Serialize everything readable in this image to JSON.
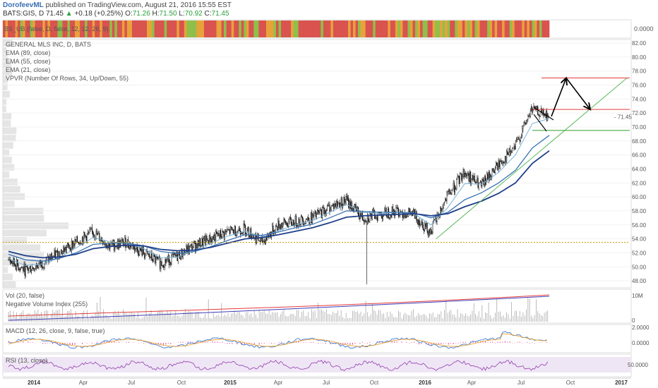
{
  "header": {
    "author": "DorofeevML",
    "published": "published on TradingView.com, August 21, 2016 15:55 EST",
    "symbol": "BATS:GIS, D",
    "last": "71.45",
    "change": "+0.18 (+0.25%)",
    "open_label": "O:",
    "open": "71.26",
    "high_label": "H:",
    "high": "71.50",
    "low_label": "L:",
    "low": "70.92",
    "close_label": "C:",
    "close": "71.45"
  },
  "panes": {
    "strip_label": "BS_UB (false, D, false, 12, 12, 26, 9)",
    "strip_value": "0.0000",
    "main_labels": [
      "GENERAL MLS INC, D, BATS",
      "EMA (89, close)",
      "EMA (55, close)",
      "EMA (21, close)",
      "VPVR (Number Of Rows, 34, Up/Down, 55)"
    ],
    "vol_labels": [
      "Vol (20, false)",
      "Negative Volume Index (255)"
    ],
    "macd_label": "MACD (12, 26, close, 9, false, true)",
    "rsi_label": "RSI (13, close)"
  },
  "colors": {
    "up_candle": "#ffffff",
    "down_candle": "#000000",
    "ema21": "#7ab3d6",
    "ema55": "#3a74b5",
    "ema89": "#1f3f8a",
    "trend": "#5cb85c",
    "resistance": "#e23b3b",
    "support": "#2e9e2e",
    "strip_red": "#d9534f",
    "strip_orange": "#e8a23a",
    "strip_green": "#8fbf4a"
  },
  "chart_data": [
    {
      "type": "line",
      "title": "GENERAL MLS INC, D, BATS",
      "ylim": [
        47,
        82.5
      ],
      "y_ticks": [
        "82.00",
        "80.00",
        "78.00",
        "76.00",
        "74.00",
        "72.00",
        "70.00",
        "68.00",
        "66.00",
        "64.00",
        "62.00",
        "60.00",
        "58.00",
        "56.00",
        "54.00",
        "52.00",
        "50.00",
        "48.00"
      ],
      "x_labels": [
        "2014",
        "Apr",
        "Jul",
        "Oct",
        "2015",
        "Apr",
        "Jul",
        "Oct",
        "2016",
        "Apr",
        "Jul",
        "Oct",
        "2017"
      ],
      "last_price_label": "71.45",
      "series": [
        {
          "name": "price",
          "x": [
            "2013-12",
            "2014-01",
            "2014-02",
            "2014-03",
            "2014-04",
            "2014-05",
            "2014-06",
            "2014-07",
            "2014-08",
            "2014-09",
            "2014-10",
            "2014-11",
            "2014-12",
            "2015-01",
            "2015-02",
            "2015-03",
            "2015-04",
            "2015-05",
            "2015-06",
            "2015-07",
            "2015-08",
            "2015-09",
            "2015-10",
            "2015-11",
            "2015-12",
            "2016-01",
            "2016-02",
            "2016-03",
            "2016-04",
            "2016-05",
            "2016-06",
            "2016-07",
            "2016-08"
          ],
          "values": [
            51.0,
            49.5,
            50.5,
            52.0,
            53.5,
            55.0,
            53.0,
            53.5,
            52.0,
            50.5,
            51.5,
            53.0,
            54.0,
            55.0,
            55.5,
            53.5,
            56.0,
            56.5,
            57.0,
            58.5,
            59.5,
            57.0,
            57.5,
            58.0,
            57.5,
            55.0,
            60.0,
            63.5,
            61.5,
            64.5,
            67.0,
            72.5,
            71.45
          ]
        },
        {
          "name": "EMA 21",
          "values": [
            51.2,
            50.2,
            50.4,
            51.3,
            52.7,
            54.2,
            53.6,
            53.4,
            52.6,
            51.3,
            51.4,
            52.4,
            53.4,
            54.4,
            55.1,
            54.3,
            55.2,
            56.0,
            56.6,
            57.8,
            58.9,
            57.8,
            57.6,
            57.8,
            57.6,
            56.0,
            58.5,
            61.9,
            61.8,
            63.5,
            66.0,
            70.5,
            71.2
          ]
        },
        {
          "name": "EMA 55",
          "values": [
            51.8,
            51.0,
            50.8,
            51.2,
            52.0,
            53.2,
            53.4,
            53.4,
            53.0,
            52.2,
            51.9,
            52.2,
            52.9,
            53.8,
            54.6,
            54.5,
            55.0,
            55.6,
            56.1,
            57.0,
            58.0,
            57.9,
            57.8,
            57.8,
            57.7,
            57.0,
            57.8,
            59.6,
            60.6,
            62.0,
            63.8,
            67.0,
            68.8
          ]
        },
        {
          "name": "EMA 89",
          "values": [
            52.2,
            51.6,
            51.3,
            51.4,
            51.8,
            52.6,
            52.9,
            53.1,
            53.0,
            52.5,
            52.3,
            52.4,
            52.8,
            53.4,
            54.0,
            54.2,
            54.6,
            55.1,
            55.6,
            56.3,
            57.1,
            57.3,
            57.4,
            57.5,
            57.6,
            57.3,
            57.6,
            58.6,
            59.4,
            60.5,
            62.0,
            64.8,
            66.6
          ]
        }
      ],
      "annotations": {
        "resistance_upper": 77.0,
        "resistance_mid": 72.5,
        "support": 69.5,
        "dotted_level": 53.5,
        "projection_path": [
          71.5,
          77.0,
          72.5
        ],
        "triangle_upper": [
          72.8,
          71.0
        ],
        "triangle_lower": [
          71.8,
          69.4
        ],
        "trendline": [
          54.0,
          77.0
        ],
        "outlier_low": 47.5
      }
    },
    {
      "type": "bar",
      "title": "Vol (20, false)",
      "y_ticks": [
        "10M",
        "0"
      ],
      "series_names": [
        "Vol (20, false)",
        "Negative Volume Index (255)"
      ]
    },
    {
      "type": "line",
      "title": "MACD (12, 26, close, 9, false, true)",
      "y_ticks": [
        "2.0000",
        "0.0000"
      ]
    },
    {
      "type": "line",
      "title": "RSI (13, close)",
      "y_ticks": [
        "50.0000"
      ]
    }
  ]
}
